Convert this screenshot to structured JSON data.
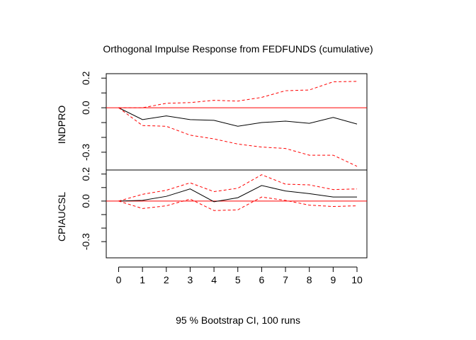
{
  "chart_data": {
    "type": "line",
    "title": "Orthogonal Impulse Response from FEDFUNDS (cumulative)",
    "xlabel": "95 % Bootstrap CI,  100 runs",
    "x": [
      0,
      1,
      2,
      3,
      4,
      5,
      6,
      7,
      8,
      9,
      10
    ],
    "xlim": [
      0,
      10
    ],
    "x_ticks": [
      "0",
      "1",
      "2",
      "3",
      "4",
      "5",
      "6",
      "7",
      "8",
      "9",
      "10"
    ],
    "line_colors": {
      "response": "#000000",
      "ci": "#ff0000",
      "zero": "#ff0000"
    },
    "panels": [
      {
        "ylabel": "INDPRO",
        "ylim": [
          -0.42,
          0.23
        ],
        "y_ticks": [
          "0.2",
          "0.0",
          "-0.3"
        ],
        "y_tick_values": [
          0.2,
          0.0,
          -0.3
        ],
        "y_minor_ticks": [
          0.2,
          0.1,
          0.0,
          -0.1,
          -0.2,
          -0.3
        ],
        "series": [
          {
            "role": "response",
            "values": [
              0.0,
              -0.08,
              -0.055,
              -0.08,
              -0.085,
              -0.125,
              -0.1,
              -0.09,
              -0.105,
              -0.065,
              -0.11
            ]
          },
          {
            "role": "ci_upper",
            "values": [
              0.0,
              0.0,
              0.03,
              0.035,
              0.05,
              0.045,
              0.07,
              0.115,
              0.12,
              0.175,
              0.178
            ]
          },
          {
            "role": "ci_lower",
            "values": [
              0.0,
              -0.12,
              -0.125,
              -0.185,
              -0.21,
              -0.245,
              -0.265,
              -0.275,
              -0.32,
              -0.32,
              -0.395
            ]
          }
        ]
      },
      {
        "ylabel": "CPIAUCSL",
        "ylim": [
          -0.42,
          0.23
        ],
        "y_ticks": [
          "0.2",
          "0.0",
          "-0.3"
        ],
        "y_tick_values": [
          0.2,
          0.0,
          -0.3
        ],
        "y_minor_ticks": [
          0.2,
          0.1,
          0.0,
          -0.1,
          -0.2,
          -0.3
        ],
        "series": [
          {
            "role": "response",
            "values": [
              0.0,
              0.005,
              0.035,
              0.09,
              -0.005,
              0.025,
              0.115,
              0.075,
              0.055,
              0.03,
              0.03
            ]
          },
          {
            "role": "ci_upper",
            "values": [
              0.0,
              0.05,
              0.08,
              0.135,
              0.07,
              0.095,
              0.195,
              0.125,
              0.12,
              0.085,
              0.09
            ]
          },
          {
            "role": "ci_lower",
            "values": [
              0.0,
              -0.055,
              -0.035,
              0.015,
              -0.07,
              -0.065,
              0.03,
              0.005,
              -0.03,
              -0.04,
              -0.035
            ]
          }
        ]
      }
    ]
  }
}
